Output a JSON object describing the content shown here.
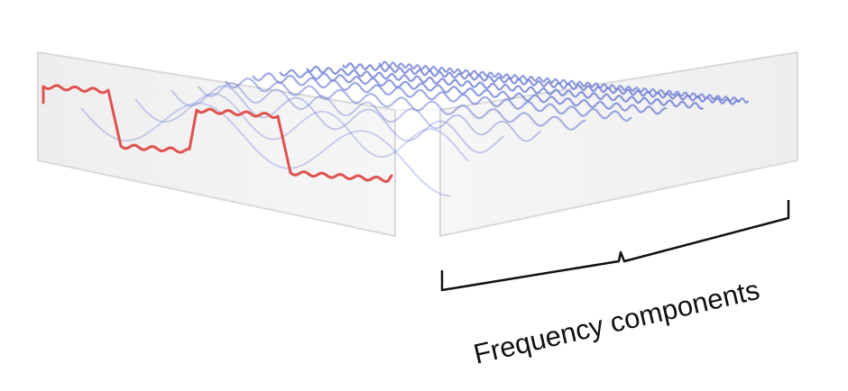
{
  "annotation": {
    "label": "Frequency components"
  },
  "colors": {
    "time_signal": "#e0524f",
    "frequency_components": "#6b7bd6",
    "panel_fill": "#f2f2f2",
    "panel_edge": "#d9d9d9",
    "bracket": "#111111"
  }
}
